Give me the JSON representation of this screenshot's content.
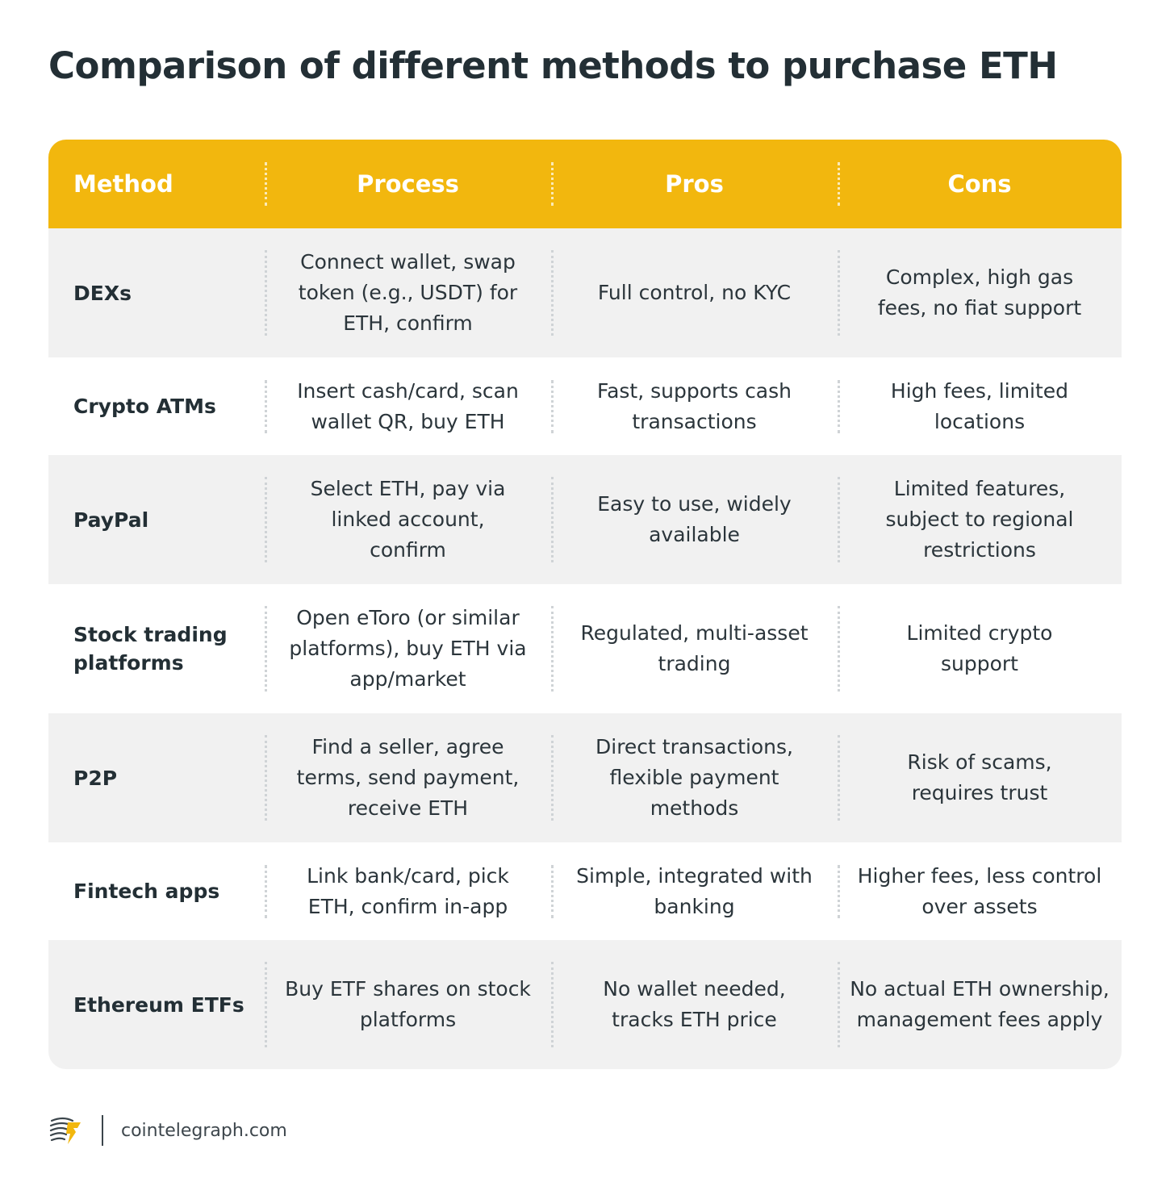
{
  "title": "Comparison of different methods to purchase ETH",
  "colors": {
    "header_background": "#f2b70e",
    "row_shaded": "#f1f1f1",
    "text": "#232f35"
  },
  "table": {
    "headers": [
      "Method",
      "Process",
      "Pros",
      "Cons"
    ],
    "rows": [
      {
        "method": "DEXs",
        "process": "Connect wallet, swap token (e.g., USDT) for ETH, confirm",
        "pros": "Full control, no KYC",
        "cons": "Complex, high gas fees, no fiat support"
      },
      {
        "method": "Crypto ATMs",
        "process": "Insert cash/card, scan wallet QR, buy ETH",
        "pros": "Fast, supports cash transactions",
        "cons": "High fees, limited locations"
      },
      {
        "method": "PayPal",
        "process": "Select ETH, pay via linked account, confirm",
        "pros": "Easy to use, widely available",
        "cons": "Limited features, subject to regional restrictions"
      },
      {
        "method": "Stock trading platforms",
        "process": "Open eToro (or similar platforms), buy ETH via app/market",
        "pros": "Regulated, multi-asset trading",
        "cons": "Limited crypto support"
      },
      {
        "method": "P2P",
        "process": "Find a seller, agree terms, send payment, receive ETH",
        "pros": "Direct transactions, flexible payment methods",
        "cons": "Risk of scams, requires trust"
      },
      {
        "method": "Fintech apps",
        "process": "Link bank/card, pick ETH, confirm in-app",
        "pros": "Simple, integrated with banking",
        "cons": "Higher fees, less control over assets"
      },
      {
        "method": "Ethereum ETFs",
        "process": "Buy ETF shares on stock platforms",
        "pros": "No wallet needed, tracks ETH price",
        "cons": "No actual ETH ownership, management fees apply"
      }
    ]
  },
  "footer": {
    "logo_icon": "cointelegraph-logo-icon",
    "site": "cointelegraph.com"
  }
}
